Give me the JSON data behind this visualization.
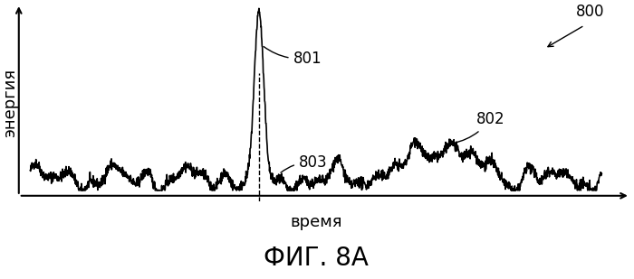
{
  "title": "ФИГ. 8А",
  "xlabel": "время",
  "ylabel": "энергия",
  "label_801": "801",
  "label_802": "802",
  "label_803": "803",
  "label_800": "800",
  "bg_color": "#ffffff",
  "line_color": "#000000",
  "dashed_color": "#000000",
  "title_fontsize": 20,
  "axis_label_fontsize": 13,
  "annotation_fontsize": 12
}
